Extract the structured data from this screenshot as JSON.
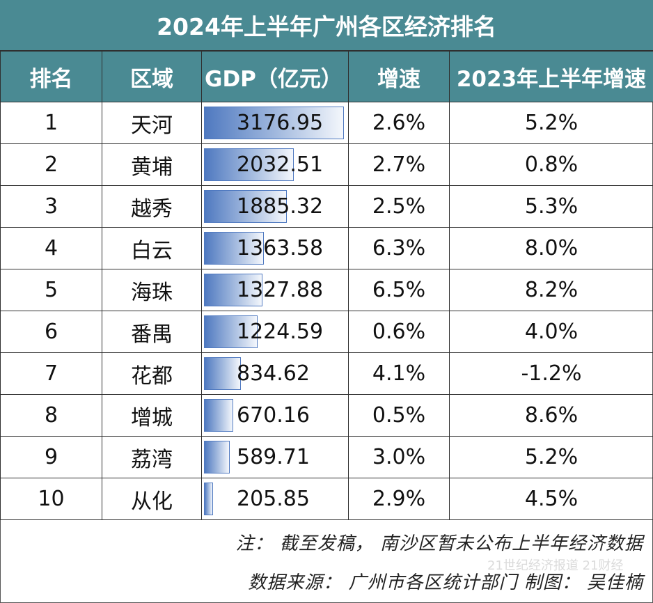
{
  "title": "2024年上半年广州各区经济排名",
  "headers": [
    "排名",
    "区域",
    "GDP（亿元）",
    "增速",
    "2023年上半年增速"
  ],
  "rows": [
    {
      "rank": "1",
      "district": "天河",
      "gdp": "3176.95",
      "growth": "2.6%",
      "growth_2023": "5.2%"
    },
    {
      "rank": "2",
      "district": "黄埔",
      "gdp": "2032.51",
      "growth": "2.7%",
      "growth_2023": "0.8%"
    },
    {
      "rank": "3",
      "district": "越秀",
      "gdp": "1885.32",
      "growth": "2.5%",
      "growth_2023": "5.3%"
    },
    {
      "rank": "4",
      "district": "白云",
      "gdp": "1363.58",
      "growth": "6.3%",
      "growth_2023": "8.0%"
    },
    {
      "rank": "5",
      "district": "海珠",
      "gdp": "1327.88",
      "growth": "6.5%",
      "growth_2023": "8.2%"
    },
    {
      "rank": "6",
      "district": "番禺",
      "gdp": "1224.59",
      "growth": "0.6%",
      "growth_2023": "4.0%"
    },
    {
      "rank": "7",
      "district": "花都",
      "gdp": "834.62",
      "growth": "4.1%",
      "growth_2023": "-1.2%"
    },
    {
      "rank": "8",
      "district": "增城",
      "gdp": "670.16",
      "growth": "0.5%",
      "growth_2023": "8.6%"
    },
    {
      "rank": "9",
      "district": "荔湾",
      "gdp": "589.71",
      "growth": "3.0%",
      "growth_2023": "5.2%"
    },
    {
      "rank": "10",
      "district": "从化",
      "gdp": "205.85",
      "growth": "2.9%",
      "growth_2023": "4.5%"
    }
  ],
  "footer": {
    "note": "注： 截至发稿， 南沙区暂未公布上半年经济数据",
    "source": "数据来源： 广州市各区统计部门 制图： 吴佳楠"
  },
  "watermark": "21世纪经济报道 21财经",
  "colors": {
    "header_bg": "#4a8a93",
    "header_text": "#ffffff",
    "bar": "#4f79c0"
  }
}
